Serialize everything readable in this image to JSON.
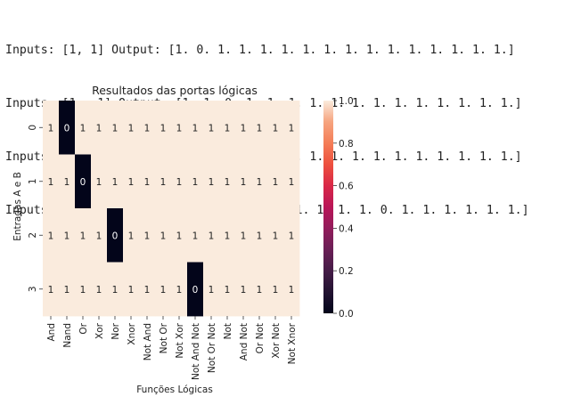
{
  "console": {
    "lines": [
      "Inputs: [1, 1] Output: [1. 0. 1. 1. 1. 1. 1. 1. 1. 1. 1. 1. 1. 1. 1. 1.]",
      "Inputs: [1, -1] Output: [1. 1. 0. 1. 1. 1. 1. 1. 1. 1. 1. 1. 1. 1. 1. 1.]",
      "Inputs: [-1, 1] Output: [1. 1. 1. 1. 0. 1. 1. 1. 1. 1. 1. 1. 1. 1. 1. 1.]",
      "Inputs: [-1, -1] Output: [1. 1. 1. 1. 1. 1. 1. 1. 1. 0. 1. 1. 1. 1. 1. 1.]"
    ]
  },
  "chart_data": {
    "type": "heatmap",
    "title": "Resultados das portas lógicas",
    "xlabel": "Funções Lógicas",
    "ylabel": "Entradas A e B",
    "x_categories": [
      "And",
      "Nand",
      "Or",
      "Xor",
      "Nor",
      "Xnor",
      "Not And",
      "Not Or",
      "Not Xor",
      "Not And Not",
      "Not Or Not",
      "Not",
      "And Not",
      "Or Not",
      "Xor Not",
      "Not Xnor"
    ],
    "y_categories": [
      "0",
      "1",
      "2",
      "3"
    ],
    "values": [
      [
        1,
        0,
        1,
        1,
        1,
        1,
        1,
        1,
        1,
        1,
        1,
        1,
        1,
        1,
        1,
        1
      ],
      [
        1,
        1,
        0,
        1,
        1,
        1,
        1,
        1,
        1,
        1,
        1,
        1,
        1,
        1,
        1,
        1
      ],
      [
        1,
        1,
        1,
        1,
        0,
        1,
        1,
        1,
        1,
        1,
        1,
        1,
        1,
        1,
        1,
        1
      ],
      [
        1,
        1,
        1,
        1,
        1,
        1,
        1,
        1,
        1,
        0,
        1,
        1,
        1,
        1,
        1,
        1
      ]
    ],
    "colorbar": {
      "ticks": [
        "0.0",
        "0.2",
        "0.4",
        "0.6",
        "0.8",
        "1.0"
      ],
      "range": [
        0,
        1
      ],
      "colormap": "rocket"
    },
    "colors": {
      "high": "#faebdd",
      "low": "#03051a"
    }
  }
}
